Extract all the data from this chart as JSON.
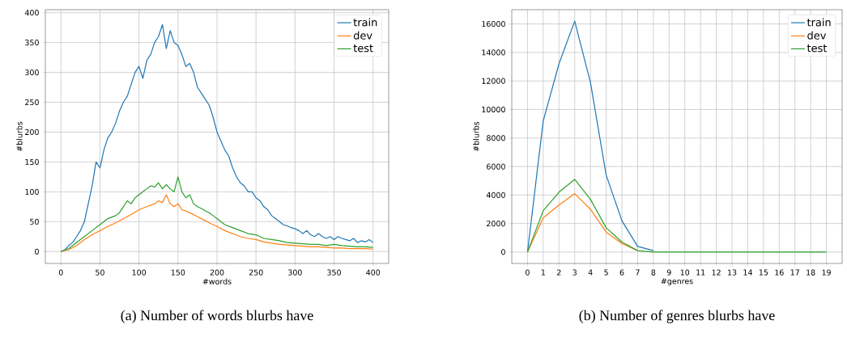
{
  "chart_data": [
    {
      "type": "line",
      "title": "(a) Number of words blurbs have",
      "xlabel": "#words",
      "ylabel": "#blurbs",
      "xlim": [
        -20,
        420
      ],
      "ylim": [
        -20,
        405
      ],
      "xticks": [
        0,
        50,
        100,
        150,
        200,
        250,
        300,
        350,
        400
      ],
      "yticks": [
        0,
        50,
        100,
        150,
        200,
        250,
        300,
        350,
        400
      ],
      "grid": true,
      "legend": "top right",
      "series": [
        {
          "name": "train",
          "color": "#1f77b4",
          "x": [
            0,
            5,
            10,
            15,
            20,
            25,
            30,
            35,
            40,
            45,
            50,
            55,
            60,
            65,
            70,
            75,
            80,
            85,
            90,
            95,
            100,
            105,
            110,
            115,
            120,
            125,
            130,
            135,
            140,
            145,
            150,
            155,
            160,
            165,
            170,
            175,
            180,
            185,
            190,
            195,
            200,
            205,
            210,
            215,
            220,
            225,
            230,
            235,
            240,
            245,
            250,
            255,
            260,
            265,
            270,
            275,
            280,
            285,
            290,
            295,
            300,
            305,
            310,
            315,
            320,
            325,
            330,
            335,
            340,
            345,
            350,
            355,
            360,
            365,
            370,
            375,
            380,
            385,
            390,
            395,
            400
          ],
          "values": [
            0,
            3,
            10,
            15,
            25,
            35,
            50,
            80,
            110,
            150,
            140,
            170,
            190,
            200,
            215,
            235,
            250,
            260,
            280,
            300,
            310,
            290,
            320,
            330,
            350,
            360,
            380,
            340,
            370,
            350,
            345,
            330,
            310,
            315,
            300,
            275,
            265,
            255,
            245,
            225,
            200,
            185,
            170,
            160,
            140,
            125,
            115,
            110,
            100,
            100,
            90,
            85,
            75,
            70,
            60,
            55,
            50,
            45,
            43,
            40,
            38,
            35,
            30,
            35,
            28,
            25,
            30,
            25,
            22,
            25,
            20,
            25,
            22,
            20,
            18,
            22,
            15,
            18,
            16,
            20,
            15
          ]
        },
        {
          "name": "dev",
          "color": "#ff7f0e",
          "x": [
            0,
            10,
            20,
            30,
            40,
            50,
            60,
            70,
            80,
            90,
            100,
            110,
            120,
            125,
            130,
            135,
            140,
            145,
            150,
            155,
            160,
            170,
            180,
            190,
            200,
            210,
            220,
            230,
            240,
            250,
            260,
            270,
            280,
            290,
            300,
            310,
            320,
            330,
            340,
            350,
            360,
            370,
            380,
            390,
            400
          ],
          "values": [
            0,
            3,
            10,
            20,
            28,
            35,
            42,
            48,
            55,
            62,
            70,
            75,
            80,
            85,
            82,
            95,
            80,
            75,
            80,
            70,
            68,
            62,
            55,
            48,
            42,
            35,
            30,
            25,
            22,
            20,
            16,
            14,
            12,
            11,
            10,
            9,
            8,
            8,
            7,
            6,
            6,
            5,
            5,
            5,
            4
          ]
        },
        {
          "name": "test",
          "color": "#2ca02c",
          "x": [
            0,
            10,
            20,
            30,
            40,
            50,
            60,
            70,
            75,
            80,
            85,
            90,
            95,
            100,
            105,
            110,
            115,
            120,
            125,
            130,
            135,
            140,
            145,
            150,
            155,
            160,
            165,
            170,
            175,
            180,
            185,
            190,
            195,
            200,
            210,
            220,
            230,
            240,
            250,
            260,
            270,
            280,
            290,
            300,
            310,
            320,
            330,
            340,
            350,
            360,
            370,
            380,
            390,
            400
          ],
          "values": [
            0,
            5,
            15,
            25,
            35,
            45,
            55,
            60,
            65,
            75,
            85,
            80,
            90,
            95,
            100,
            105,
            110,
            108,
            115,
            105,
            112,
            105,
            100,
            125,
            100,
            90,
            95,
            80,
            75,
            72,
            68,
            65,
            60,
            55,
            45,
            40,
            35,
            30,
            28,
            22,
            20,
            18,
            15,
            14,
            13,
            12,
            12,
            10,
            12,
            10,
            9,
            8,
            8,
            7
          ]
        }
      ]
    },
    {
      "type": "line",
      "title": "(b) Number of genres blurbs have",
      "xlabel": "#genres",
      "ylabel": "#blurbs",
      "xlim": [
        -1,
        20
      ],
      "ylim": [
        -800,
        17000
      ],
      "xticks": [
        0,
        1,
        2,
        3,
        4,
        5,
        6,
        7,
        8,
        9,
        10,
        11,
        12,
        13,
        14,
        15,
        16,
        17,
        18,
        19
      ],
      "yticks": [
        0,
        2000,
        4000,
        6000,
        8000,
        10000,
        12000,
        14000,
        16000
      ],
      "grid": true,
      "legend": "top right",
      "x": [
        0,
        1,
        2,
        3,
        4,
        5,
        6,
        7,
        8,
        9,
        10,
        11,
        12,
        13,
        14,
        15,
        16,
        17,
        18,
        19
      ],
      "series": [
        {
          "name": "train",
          "color": "#1f77b4",
          "values": [
            0,
            9200,
            13200,
            16200,
            11900,
            5400,
            2200,
            400,
            100,
            null,
            null,
            null,
            null,
            null,
            null,
            null,
            null,
            null,
            null,
            null
          ]
        },
        {
          "name": "dev",
          "color": "#ff7f0e",
          "values": [
            0,
            2400,
            3300,
            4100,
            3000,
            1400,
            600,
            100,
            null,
            null,
            null,
            null,
            null,
            null,
            null,
            null,
            null,
            null,
            null,
            null
          ]
        },
        {
          "name": "test",
          "color": "#2ca02c",
          "values": [
            0,
            2900,
            4200,
            5100,
            3700,
            1700,
            700,
            100,
            0,
            0,
            0,
            0,
            0,
            0,
            0,
            0,
            0,
            0,
            0,
            0
          ]
        }
      ]
    }
  ]
}
